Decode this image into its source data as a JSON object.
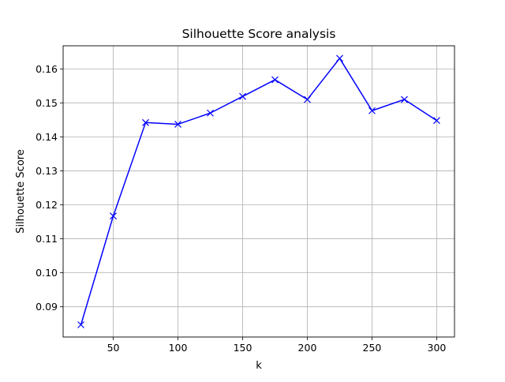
{
  "chart_data": {
    "type": "line",
    "title": "Silhouette Score analysis",
    "xlabel": "k",
    "ylabel": "Silhouette Score",
    "xlim": [
      11.25,
      313.75
    ],
    "ylim": [
      0.0811,
      0.1668
    ],
    "xticks": [
      50,
      100,
      150,
      200,
      250,
      300
    ],
    "xtick_labels": [
      "50",
      "100",
      "150",
      "200",
      "250",
      "300"
    ],
    "yticks": [
      0.09,
      0.1,
      0.11,
      0.12,
      0.13,
      0.14,
      0.15,
      0.16
    ],
    "ytick_labels": [
      "0.09",
      "0.10",
      "0.11",
      "0.12",
      "0.13",
      "0.14",
      "0.15",
      "0.16"
    ],
    "grid": true,
    "series": [
      {
        "color": "#0000ff",
        "marker": "x",
        "x": [
          25,
          50,
          75,
          100,
          125,
          150,
          175,
          200,
          225,
          250,
          275,
          300
        ],
        "y": [
          0.0847,
          0.1167,
          0.1442,
          0.1437,
          0.147,
          0.1519,
          0.1568,
          0.151,
          0.1631,
          0.1477,
          0.151,
          0.1448
        ]
      }
    ]
  }
}
